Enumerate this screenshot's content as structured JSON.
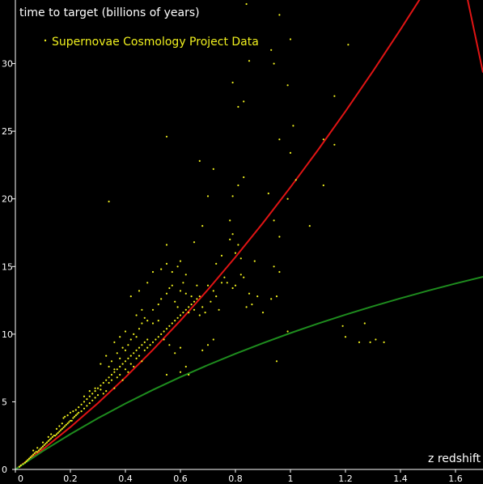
{
  "chart_data": {
    "type": "scatter",
    "ylabel": "time to target (billions of years)",
    "xlabel": "z redshift",
    "xlim": [
      0,
      1.7
    ],
    "ylim": [
      0,
      34.7
    ],
    "x_ticks": [
      "0",
      "0.2",
      "0.4",
      "0.6",
      "0.8",
      "1",
      "1.2",
      "1.4",
      "1.6"
    ],
    "y_ticks": [
      "0",
      "5",
      "10",
      "15",
      "20",
      "25",
      "30"
    ],
    "legend": {
      "label": "Supernovae Cosmology Project Data",
      "placement": "top-left"
    },
    "colors": {
      "points": "#f0f01e",
      "red_curve": "#e01414",
      "green_curve": "#1e8c1e",
      "axes": "#ffffff",
      "background": "#000000"
    },
    "series": [
      {
        "name": "Supernovae Cosmology Project Data",
        "kind": "scatter",
        "points": [
          [
            0.015,
            0.2
          ],
          [
            0.02,
            0.3
          ],
          [
            0.028,
            0.4
          ],
          [
            0.035,
            0.5
          ],
          [
            0.04,
            0.6
          ],
          [
            0.045,
            0.7
          ],
          [
            0.05,
            0.8
          ],
          [
            0.055,
            0.9
          ],
          [
            0.06,
            1.0
          ],
          [
            0.065,
            1.1
          ],
          [
            0.07,
            1.2
          ],
          [
            0.075,
            1.3
          ],
          [
            0.08,
            1.3
          ],
          [
            0.085,
            1.4
          ],
          [
            0.09,
            1.5
          ],
          [
            0.095,
            1.6
          ],
          [
            0.1,
            1.7
          ],
          [
            0.105,
            1.8
          ],
          [
            0.11,
            1.9
          ],
          [
            0.115,
            2.0
          ],
          [
            0.12,
            2.1
          ],
          [
            0.125,
            2.2
          ],
          [
            0.13,
            2.3
          ],
          [
            0.135,
            2.4
          ],
          [
            0.14,
            2.5
          ],
          [
            0.145,
            2.5
          ],
          [
            0.15,
            2.6
          ],
          [
            0.155,
            2.7
          ],
          [
            0.16,
            2.8
          ],
          [
            0.165,
            2.9
          ],
          [
            0.17,
            3.0
          ],
          [
            0.175,
            3.1
          ],
          [
            0.18,
            3.2
          ],
          [
            0.185,
            3.3
          ],
          [
            0.19,
            3.4
          ],
          [
            0.195,
            3.5
          ],
          [
            0.2,
            3.6
          ],
          [
            0.205,
            3.6
          ],
          [
            0.21,
            3.8
          ],
          [
            0.215,
            3.9
          ],
          [
            0.22,
            4.0
          ],
          [
            0.225,
            4.1
          ],
          [
            0.23,
            4.2
          ],
          [
            0.24,
            4.3
          ],
          [
            0.25,
            4.5
          ],
          [
            0.26,
            4.7
          ],
          [
            0.27,
            4.9
          ],
          [
            0.28,
            5.1
          ],
          [
            0.29,
            5.3
          ],
          [
            0.3,
            5.5
          ],
          [
            0.065,
            1.4
          ],
          [
            0.08,
            1.6
          ],
          [
            0.1,
            2.0
          ],
          [
            0.12,
            2.4
          ],
          [
            0.13,
            2.6
          ],
          [
            0.15,
            3.0
          ],
          [
            0.16,
            3.2
          ],
          [
            0.17,
            3.4
          ],
          [
            0.175,
            3.8
          ],
          [
            0.18,
            3.9
          ],
          [
            0.19,
            4.0
          ],
          [
            0.2,
            4.2
          ],
          [
            0.21,
            4.3
          ],
          [
            0.22,
            4.4
          ],
          [
            0.23,
            4.6
          ],
          [
            0.24,
            4.8
          ],
          [
            0.25,
            5.0
          ],
          [
            0.26,
            5.2
          ],
          [
            0.27,
            5.4
          ],
          [
            0.28,
            5.6
          ],
          [
            0.29,
            5.8
          ],
          [
            0.3,
            6.0
          ],
          [
            0.31,
            6.2
          ],
          [
            0.32,
            6.4
          ],
          [
            0.33,
            6.6
          ],
          [
            0.34,
            6.8
          ],
          [
            0.35,
            7.0
          ],
          [
            0.36,
            7.2
          ],
          [
            0.37,
            7.4
          ],
          [
            0.38,
            7.6
          ],
          [
            0.39,
            7.8
          ],
          [
            0.4,
            8.0
          ],
          [
            0.41,
            8.2
          ],
          [
            0.42,
            8.4
          ],
          [
            0.43,
            8.6
          ],
          [
            0.44,
            8.8
          ],
          [
            0.45,
            9.0
          ],
          [
            0.46,
            9.2
          ],
          [
            0.47,
            9.4
          ],
          [
            0.48,
            9.6
          ],
          [
            0.25,
            5.4
          ],
          [
            0.27,
            5.8
          ],
          [
            0.29,
            6.0
          ],
          [
            0.31,
            5.9
          ],
          [
            0.32,
            5.6
          ],
          [
            0.33,
            5.8
          ],
          [
            0.34,
            6.4
          ],
          [
            0.35,
            6.6
          ],
          [
            0.36,
            6.0
          ],
          [
            0.37,
            6.8
          ],
          [
            0.38,
            7.0
          ],
          [
            0.39,
            6.6
          ],
          [
            0.4,
            7.4
          ],
          [
            0.41,
            7.2
          ],
          [
            0.42,
            7.8
          ],
          [
            0.43,
            7.6
          ],
          [
            0.44,
            8.2
          ],
          [
            0.45,
            8.4
          ],
          [
            0.46,
            8.0
          ],
          [
            0.47,
            8.8
          ],
          [
            0.48,
            9.0
          ],
          [
            0.49,
            9.2
          ],
          [
            0.5,
            9.4
          ],
          [
            0.51,
            9.6
          ],
          [
            0.52,
            9.8
          ],
          [
            0.53,
            10.0
          ],
          [
            0.54,
            10.2
          ],
          [
            0.55,
            10.4
          ],
          [
            0.56,
            10.6
          ],
          [
            0.57,
            10.8
          ],
          [
            0.58,
            11.0
          ],
          [
            0.59,
            11.2
          ],
          [
            0.6,
            11.4
          ],
          [
            0.61,
            11.6
          ],
          [
            0.62,
            11.8
          ],
          [
            0.63,
            12.0
          ],
          [
            0.64,
            12.2
          ],
          [
            0.65,
            12.4
          ],
          [
            0.66,
            12.6
          ],
          [
            0.67,
            12.8
          ],
          [
            0.34,
            7.6
          ],
          [
            0.35,
            8.0
          ],
          [
            0.36,
            7.4
          ],
          [
            0.37,
            8.6
          ],
          [
            0.38,
            8.2
          ],
          [
            0.39,
            9.0
          ],
          [
            0.4,
            8.8
          ],
          [
            0.41,
            9.2
          ],
          [
            0.42,
            9.6
          ],
          [
            0.43,
            10.0
          ],
          [
            0.44,
            9.8
          ],
          [
            0.45,
            10.4
          ],
          [
            0.46,
            10.8
          ],
          [
            0.47,
            11.2
          ],
          [
            0.48,
            11.0
          ],
          [
            0.5,
            11.8
          ],
          [
            0.52,
            12.2
          ],
          [
            0.53,
            12.6
          ],
          [
            0.55,
            13.0
          ],
          [
            0.56,
            13.4
          ],
          [
            0.57,
            13.6
          ],
          [
            0.58,
            12.4
          ],
          [
            0.59,
            12.0
          ],
          [
            0.6,
            13.2
          ],
          [
            0.61,
            13.8
          ],
          [
            0.62,
            13.0
          ],
          [
            0.63,
            11.6
          ],
          [
            0.64,
            12.8
          ],
          [
            0.65,
            11.8
          ],
          [
            0.66,
            13.6
          ],
          [
            0.67,
            11.4
          ],
          [
            0.68,
            12.0
          ],
          [
            0.69,
            11.6
          ],
          [
            0.7,
            13.6
          ],
          [
            0.71,
            12.4
          ],
          [
            0.72,
            13.2
          ],
          [
            0.73,
            12.8
          ],
          [
            0.74,
            11.8
          ],
          [
            0.75,
            13.8
          ],
          [
            0.76,
            14.2
          ],
          [
            0.57,
            14.6
          ],
          [
            0.59,
            15.0
          ],
          [
            0.6,
            15.4
          ],
          [
            0.62,
            14.4
          ],
          [
            0.55,
            15.2
          ],
          [
            0.53,
            14.8
          ],
          [
            0.5,
            14.6
          ],
          [
            0.48,
            13.8
          ],
          [
            0.45,
            13.2
          ],
          [
            0.42,
            12.8
          ],
          [
            0.4,
            10.2
          ],
          [
            0.38,
            9.8
          ],
          [
            0.36,
            9.4
          ],
          [
            0.33,
            8.4
          ],
          [
            0.31,
            7.8
          ],
          [
            0.44,
            11.4
          ],
          [
            0.46,
            11.8
          ],
          [
            0.5,
            10.8
          ],
          [
            0.52,
            11.0
          ],
          [
            0.54,
            9.6
          ],
          [
            0.56,
            9.2
          ],
          [
            0.58,
            8.6
          ],
          [
            0.6,
            9.0
          ],
          [
            0.62,
            7.6
          ],
          [
            0.55,
            7.0
          ],
          [
            0.6,
            7.2
          ],
          [
            0.63,
            7.0
          ],
          [
            0.68,
            8.8
          ],
          [
            0.7,
            9.2
          ],
          [
            0.72,
            9.6
          ],
          [
            0.55,
            24.6
          ],
          [
            0.65,
            16.8
          ],
          [
            0.55,
            16.6
          ],
          [
            0.67,
            22.8
          ],
          [
            0.72,
            22.2
          ],
          [
            0.7,
            20.2
          ],
          [
            0.68,
            18.0
          ],
          [
            0.78,
            17.0
          ],
          [
            0.79,
            17.4
          ],
          [
            0.78,
            18.4
          ],
          [
            0.8,
            16.0
          ],
          [
            0.75,
            15.8
          ],
          [
            0.73,
            15.2
          ],
          [
            0.77,
            13.8
          ],
          [
            0.79,
            13.4
          ],
          [
            0.8,
            13.6
          ],
          [
            0.82,
            14.4
          ],
          [
            0.83,
            14.2
          ],
          [
            0.85,
            13.0
          ],
          [
            0.86,
            12.2
          ],
          [
            0.84,
            12.0
          ],
          [
            0.88,
            12.8
          ],
          [
            0.9,
            11.6
          ],
          [
            0.93,
            12.6
          ],
          [
            0.95,
            12.8
          ],
          [
            0.96,
            14.6
          ],
          [
            0.94,
            15.0
          ],
          [
            0.87,
            15.4
          ],
          [
            0.82,
            15.6
          ],
          [
            0.81,
            16.6
          ],
          [
            0.79,
            20.2
          ],
          [
            0.83,
            21.6
          ],
          [
            0.81,
            21.0
          ],
          [
            0.92,
            20.4
          ],
          [
            0.94,
            18.4
          ],
          [
            0.96,
            17.2
          ],
          [
            0.99,
            20.0
          ],
          [
            1.02,
            21.4
          ],
          [
            1.07,
            18.0
          ],
          [
            1.12,
            21.0
          ],
          [
            0.79,
            28.6
          ],
          [
            0.83,
            27.2
          ],
          [
            0.81,
            26.8
          ],
          [
            0.85,
            30.2
          ],
          [
            0.94,
            30.0
          ],
          [
            0.93,
            31.0
          ],
          [
            0.96,
            33.6
          ],
          [
            0.99,
            28.4
          ],
          [
            1.0,
            31.8
          ],
          [
            1.01,
            25.4
          ],
          [
            1.0,
            23.4
          ],
          [
            0.96,
            24.4
          ],
          [
            1.12,
            24.4
          ],
          [
            1.16,
            24.0
          ],
          [
            1.16,
            27.6
          ],
          [
            1.21,
            31.4
          ],
          [
            0.84,
            34.4
          ],
          [
            0.34,
            19.8
          ],
          [
            0.99,
            10.2
          ],
          [
            0.95,
            8.0
          ],
          [
            1.19,
            10.6
          ],
          [
            1.2,
            9.8
          ],
          [
            1.25,
            9.4
          ],
          [
            1.29,
            9.4
          ],
          [
            1.31,
            9.6
          ],
          [
            1.34,
            9.4
          ],
          [
            1.27,
            10.8
          ]
        ]
      },
      {
        "name": "",
        "kind": "line",
        "color": "#e01414",
        "x": [
          0,
          0.1,
          0.2,
          0.3,
          0.4,
          0.5,
          0.6,
          0.7,
          0.8,
          0.9,
          1.0,
          1.1,
          1.2,
          1.3,
          1.4,
          1.5,
          1.6,
          1.7
        ],
        "y": [
          0,
          1.49,
          3.13,
          4.9,
          6.81,
          8.84,
          11.0,
          13.29,
          15.7,
          18.22,
          20.86,
          23.61,
          26.47,
          29.44,
          32.52,
          35.7,
          38.98,
          29.34
        ]
      },
      {
        "name": "",
        "kind": "line",
        "color": "#1e8c1e",
        "x": [
          0,
          0.1,
          0.2,
          0.3,
          0.4,
          0.5,
          0.6,
          0.7,
          0.8,
          0.9,
          1.0,
          1.1,
          1.2,
          1.3,
          1.4,
          1.5,
          1.6,
          1.7
        ],
        "y": [
          0,
          1.36,
          2.61,
          3.78,
          4.87,
          5.88,
          6.83,
          7.72,
          8.55,
          9.34,
          10.08,
          10.78,
          11.44,
          12.06,
          12.65,
          13.21,
          13.74,
          14.24
        ]
      }
    ]
  }
}
